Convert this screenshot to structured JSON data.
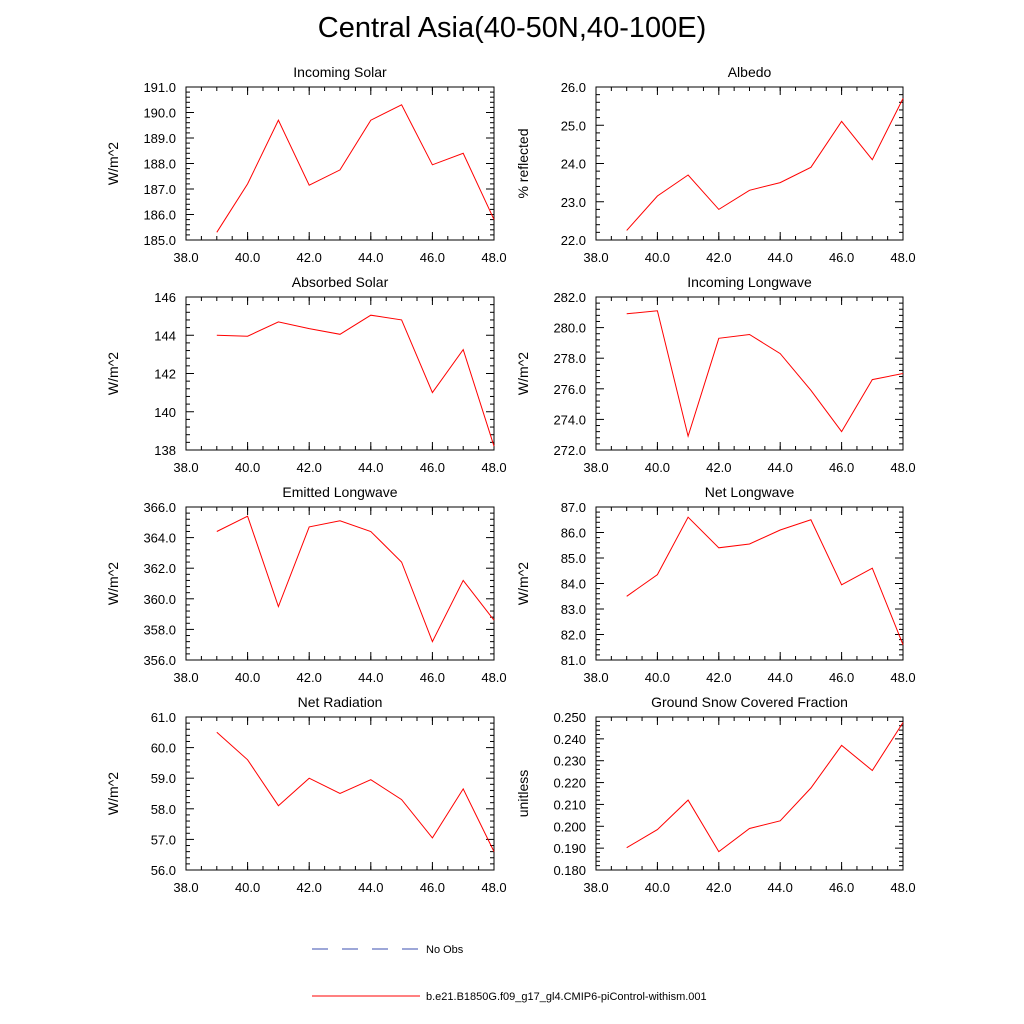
{
  "title": "Central Asia(40-50N,40-100E)",
  "colors": {
    "model_line": "#ff0000",
    "obs_line": "#3b4fb0",
    "axes": "#000000"
  },
  "legend": {
    "obs_label": "No Obs",
    "model_label": "b.e21.B1850G.f09_g17_gl4.CMIP6-piControl-withism.001"
  },
  "chart_data": [
    {
      "type": "line",
      "title": "Incoming Solar",
      "ylabel": "W/m^2",
      "xlim": [
        38,
        48
      ],
      "ylim": [
        185,
        191
      ],
      "xticks": [
        38,
        40,
        42,
        44,
        46,
        48
      ],
      "xtick_labels": [
        "38.0",
        "40.0",
        "42.0",
        "44.0",
        "46.0",
        "48.0"
      ],
      "yticks": [
        185,
        186,
        187,
        188,
        189,
        190,
        191
      ],
      "ytick_labels": [
        "185.0",
        "186.0",
        "187.0",
        "188.0",
        "189.0",
        "190.0",
        "191.0"
      ],
      "x": [
        39,
        40,
        41,
        42,
        43,
        44,
        45,
        46,
        47,
        48
      ],
      "y": [
        185.3,
        187.2,
        189.7,
        187.15,
        187.75,
        189.7,
        190.3,
        187.95,
        188.4,
        185.8
      ]
    },
    {
      "type": "line",
      "title": "Albedo",
      "ylabel": "% reflected",
      "xlim": [
        38,
        48
      ],
      "ylim": [
        22,
        26
      ],
      "xticks": [
        38,
        40,
        42,
        44,
        46,
        48
      ],
      "xtick_labels": [
        "38.0",
        "40.0",
        "42.0",
        "44.0",
        "46.0",
        "48.0"
      ],
      "yticks": [
        22,
        23,
        24,
        25,
        26
      ],
      "ytick_labels": [
        "22.0",
        "23.0",
        "24.0",
        "25.0",
        "26.0"
      ],
      "x": [
        39,
        40,
        41,
        42,
        43,
        44,
        45,
        46,
        47,
        48
      ],
      "y": [
        22.25,
        23.15,
        23.7,
        22.8,
        23.3,
        23.5,
        23.9,
        25.1,
        24.1,
        25.7
      ]
    },
    {
      "type": "line",
      "title": "Absorbed Solar",
      "ylabel": "W/m^2",
      "xlim": [
        38,
        48
      ],
      "ylim": [
        138,
        146
      ],
      "xticks": [
        38,
        40,
        42,
        44,
        46,
        48
      ],
      "xtick_labels": [
        "38.0",
        "40.0",
        "42.0",
        "44.0",
        "46.0",
        "48.0"
      ],
      "yticks": [
        138,
        140,
        142,
        144,
        146
      ],
      "ytick_labels": [
        "138",
        "140",
        "142",
        "144",
        "146"
      ],
      "x": [
        39,
        40,
        41,
        42,
        43,
        44,
        45,
        46,
        47,
        48
      ],
      "y": [
        144.0,
        143.95,
        144.7,
        144.35,
        144.05,
        145.05,
        144.8,
        141.0,
        143.25,
        138.2
      ]
    },
    {
      "type": "line",
      "title": "Incoming Longwave",
      "ylabel": "W/m^2",
      "xlim": [
        38,
        48
      ],
      "ylim": [
        272,
        282
      ],
      "xticks": [
        38,
        40,
        42,
        44,
        46,
        48
      ],
      "xtick_labels": [
        "38.0",
        "40.0",
        "42.0",
        "44.0",
        "46.0",
        "48.0"
      ],
      "yticks": [
        272,
        274,
        276,
        278,
        280,
        282
      ],
      "ytick_labels": [
        "272.0",
        "274.0",
        "276.0",
        "278.0",
        "280.0",
        "282.0"
      ],
      "x": [
        39,
        40,
        41,
        42,
        43,
        44,
        45,
        46,
        47,
        48
      ],
      "y": [
        280.9,
        281.1,
        272.9,
        279.3,
        279.55,
        278.3,
        275.9,
        273.2,
        276.6,
        277.0
      ]
    },
    {
      "type": "line",
      "title": "Emitted Longwave",
      "ylabel": "W/m^2",
      "xlim": [
        38,
        48
      ],
      "ylim": [
        356,
        366
      ],
      "xticks": [
        38,
        40,
        42,
        44,
        46,
        48
      ],
      "xtick_labels": [
        "38.0",
        "40.0",
        "42.0",
        "44.0",
        "46.0",
        "48.0"
      ],
      "yticks": [
        356,
        358,
        360,
        362,
        364,
        366
      ],
      "ytick_labels": [
        "356.0",
        "358.0",
        "360.0",
        "362.0",
        "364.0",
        "366.0"
      ],
      "x": [
        39,
        40,
        41,
        42,
        43,
        44,
        45,
        46,
        47,
        48
      ],
      "y": [
        364.4,
        365.4,
        359.5,
        364.7,
        365.1,
        364.4,
        362.4,
        357.2,
        361.2,
        358.6
      ]
    },
    {
      "type": "line",
      "title": "Net Longwave",
      "ylabel": "W/m^2",
      "xlim": [
        38,
        48
      ],
      "ylim": [
        81,
        87
      ],
      "xticks": [
        38,
        40,
        42,
        44,
        46,
        48
      ],
      "xtick_labels": [
        "38.0",
        "40.0",
        "42.0",
        "44.0",
        "46.0",
        "48.0"
      ],
      "yticks": [
        81,
        82,
        83,
        84,
        85,
        86,
        87
      ],
      "ytick_labels": [
        "81.0",
        "82.0",
        "83.0",
        "84.0",
        "85.0",
        "86.0",
        "87.0"
      ],
      "x": [
        39,
        40,
        41,
        42,
        43,
        44,
        45,
        46,
        47,
        48
      ],
      "y": [
        83.5,
        84.35,
        86.6,
        85.4,
        85.55,
        86.1,
        86.5,
        83.95,
        84.6,
        81.6
      ]
    },
    {
      "type": "line",
      "title": "Net Radiation",
      "ylabel": "W/m^2",
      "xlim": [
        38,
        48
      ],
      "ylim": [
        56,
        61
      ],
      "xticks": [
        38,
        40,
        42,
        44,
        46,
        48
      ],
      "xtick_labels": [
        "38.0",
        "40.0",
        "42.0",
        "44.0",
        "46.0",
        "48.0"
      ],
      "yticks": [
        56,
        57,
        58,
        59,
        60,
        61
      ],
      "ytick_labels": [
        "56.0",
        "57.0",
        "58.0",
        "59.0",
        "60.0",
        "61.0"
      ],
      "x": [
        39,
        40,
        41,
        42,
        43,
        44,
        45,
        46,
        47,
        48
      ],
      "y": [
        60.5,
        59.6,
        58.1,
        59.0,
        58.5,
        58.95,
        58.3,
        57.05,
        58.65,
        56.6
      ]
    },
    {
      "type": "line",
      "title": "Ground Snow Covered Fraction",
      "ylabel": "unitless",
      "xlim": [
        38,
        48
      ],
      "ylim": [
        0.18,
        0.25
      ],
      "xticks": [
        38,
        40,
        42,
        44,
        46,
        48
      ],
      "xtick_labels": [
        "38.0",
        "40.0",
        "42.0",
        "44.0",
        "46.0",
        "48.0"
      ],
      "yticks": [
        0.18,
        0.19,
        0.2,
        0.21,
        0.22,
        0.23,
        0.24,
        0.25
      ],
      "ytick_labels": [
        "0.180",
        "0.190",
        "0.200",
        "0.210",
        "0.220",
        "0.230",
        "0.240",
        "0.250"
      ],
      "x": [
        39,
        40,
        41,
        42,
        43,
        44,
        45,
        46,
        47,
        48
      ],
      "y": [
        0.1902,
        0.1985,
        0.212,
        0.1884,
        0.199,
        0.2025,
        0.2175,
        0.237,
        0.2255,
        0.2475
      ]
    }
  ]
}
